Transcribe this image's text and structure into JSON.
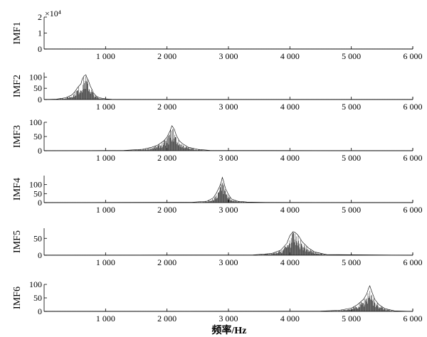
{
  "chart_data": {
    "type": "line",
    "xlabel": "频率/Hz",
    "xlim": [
      0,
      6000
    ],
    "x_ticks": [
      1000,
      2000,
      3000,
      4000,
      5000,
      6000
    ],
    "x_tick_labels": [
      "1 000",
      "2 000",
      "3 000",
      "4 000",
      "5 000",
      "6 000"
    ],
    "panels": [
      {
        "ylabel": "IMF1",
        "ylim": [
          0,
          2
        ],
        "y_ticks": [
          0,
          1,
          2
        ],
        "y_tick_labels": [
          "0",
          "1",
          "2"
        ],
        "y_multiplier": "×10⁴",
        "x": [
          0,
          6000
        ],
        "y": [
          0,
          0
        ]
      },
      {
        "ylabel": "IMF2",
        "ylim": [
          0,
          120
        ],
        "y_ticks": [
          0,
          50,
          100
        ],
        "y_tick_labels": [
          "0",
          "50",
          "100"
        ],
        "x": [
          0,
          200,
          350,
          450,
          500,
          550,
          600,
          620,
          650,
          680,
          700,
          720,
          750,
          780,
          800,
          850,
          900,
          1000,
          1100,
          1300,
          6000
        ],
        "y": [
          0,
          2,
          8,
          20,
          35,
          55,
          70,
          90,
          105,
          110,
          95,
          85,
          60,
          45,
          30,
          15,
          8,
          3,
          1,
          0,
          0
        ]
      },
      {
        "ylabel": "IMF3",
        "ylim": [
          0,
          100
        ],
        "y_ticks": [
          0,
          50,
          100
        ],
        "y_tick_labels": [
          "0",
          "50",
          "100"
        ],
        "x": [
          0,
          1300,
          1600,
          1750,
          1850,
          1950,
          2000,
          2050,
          2080,
          2120,
          2150,
          2200,
          2250,
          2350,
          2500,
          2700,
          6000
        ],
        "y": [
          0,
          1,
          5,
          12,
          20,
          35,
          48,
          70,
          88,
          75,
          55,
          35,
          25,
          12,
          5,
          1,
          0
        ]
      },
      {
        "ylabel": "IMF4",
        "ylim": [
          0,
          150
        ],
        "y_ticks": [
          0,
          50,
          100
        ],
        "y_tick_labels": [
          "0",
          "50",
          "100"
        ],
        "x": [
          0,
          2400,
          2650,
          2750,
          2800,
          2850,
          2880,
          2900,
          2920,
          2950,
          3000,
          3050,
          3150,
          3300,
          3600,
          6000
        ],
        "y": [
          0,
          2,
          8,
          25,
          50,
          85,
          110,
          140,
          120,
          80,
          45,
          20,
          8,
          3,
          1,
          0
        ]
      },
      {
        "ylabel": "IMF5",
        "ylim": [
          0,
          80
        ],
        "y_ticks": [
          0,
          50
        ],
        "y_tick_labels": [
          "0",
          "50"
        ],
        "x": [
          0,
          3400,
          3700,
          3850,
          3950,
          4000,
          4050,
          4080,
          4120,
          4150,
          4200,
          4300,
          4400,
          4600,
          6000
        ],
        "y": [
          0,
          1,
          5,
          15,
          35,
          58,
          70,
          68,
          62,
          55,
          40,
          22,
          10,
          2,
          0
        ]
      },
      {
        "ylabel": "IMF6",
        "ylim": [
          0,
          100
        ],
        "y_ticks": [
          0,
          50,
          100
        ],
        "y_tick_labels": [
          "0",
          "50",
          "100"
        ],
        "x": [
          0,
          4500,
          4800,
          5000,
          5100,
          5200,
          5250,
          5280,
          5300,
          5330,
          5380,
          5450,
          5550,
          5700,
          6000
        ],
        "y": [
          0,
          1,
          4,
          12,
          25,
          45,
          65,
          85,
          95,
          75,
          45,
          25,
          10,
          2,
          0
        ]
      }
    ]
  }
}
